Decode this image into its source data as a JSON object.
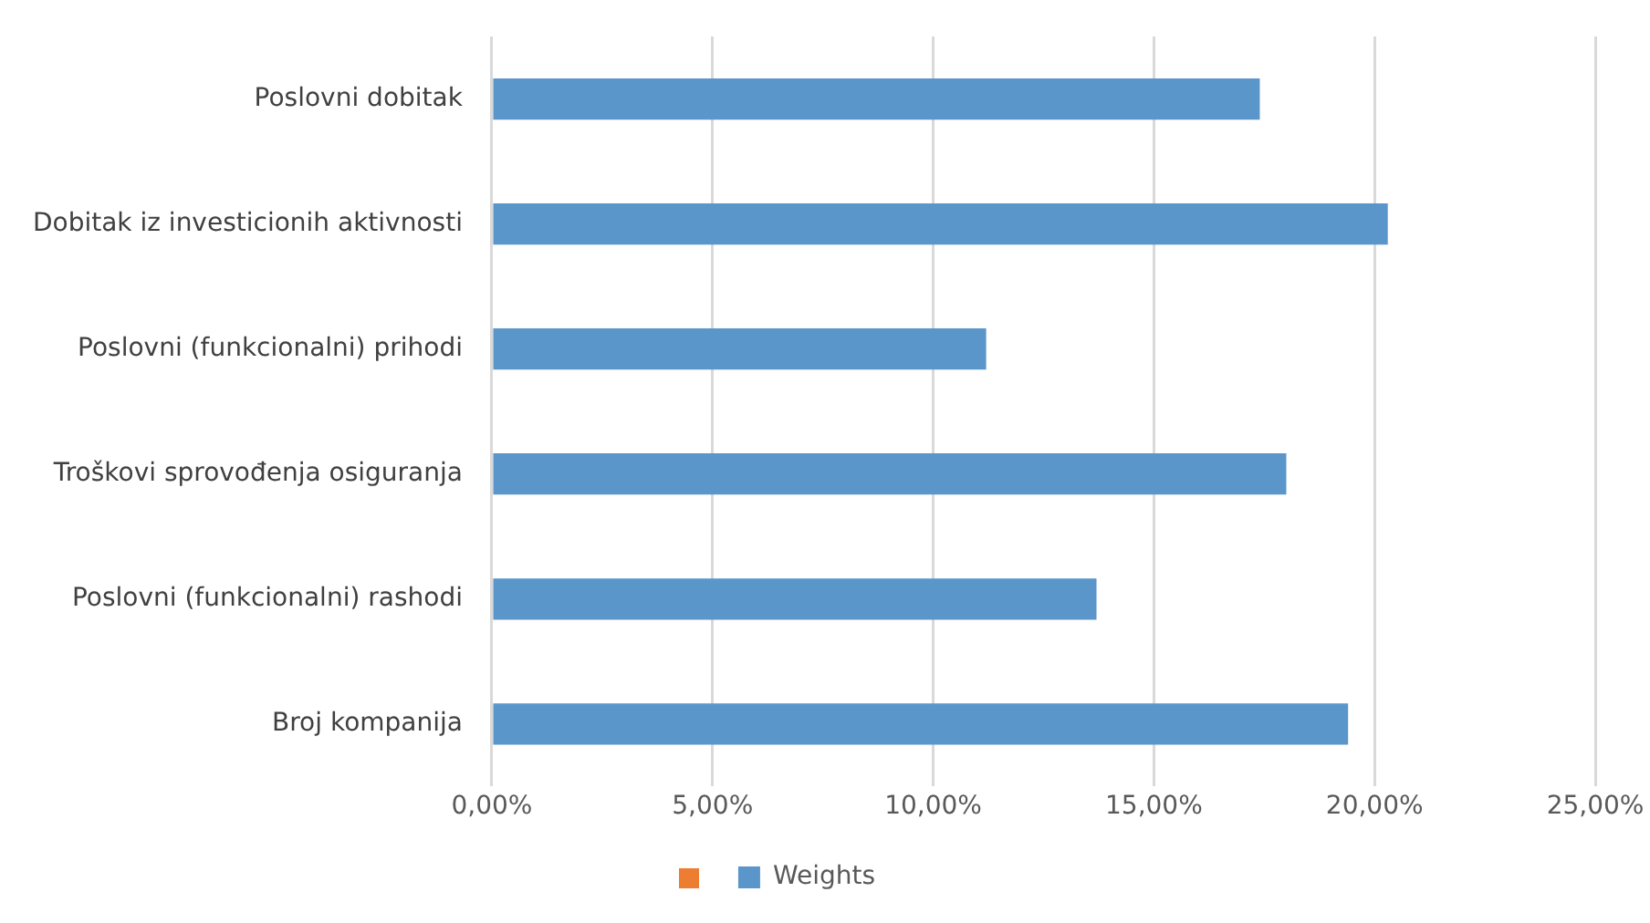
{
  "chart_data": {
    "type": "bar",
    "orientation": "horizontal",
    "categories": [
      "Poslovni dobitak",
      "Dobitak iz investicionih aktivnosti",
      "Poslovni (funkcionalni) prihodi",
      "Troškovi sprovođenja osiguranja",
      "Poslovni (funkcionalni) rashodi",
      "Broj kompanija"
    ],
    "series": [
      {
        "name": "Weights",
        "color": "#5b96cb",
        "values": [
          17.4,
          20.3,
          11.2,
          18.0,
          13.7,
          19.4
        ]
      }
    ],
    "xlim": [
      0,
      25
    ],
    "xticks": [
      {
        "value": 0,
        "label": "0,00%"
      },
      {
        "value": 5,
        "label": "5,00%"
      },
      {
        "value": 10,
        "label": "10,00%"
      },
      {
        "value": 15,
        "label": "15,00%"
      },
      {
        "value": 20,
        "label": "20,00%"
      },
      {
        "value": 25,
        "label": "25,00%"
      }
    ],
    "grid": "x",
    "legend": "bottom"
  }
}
